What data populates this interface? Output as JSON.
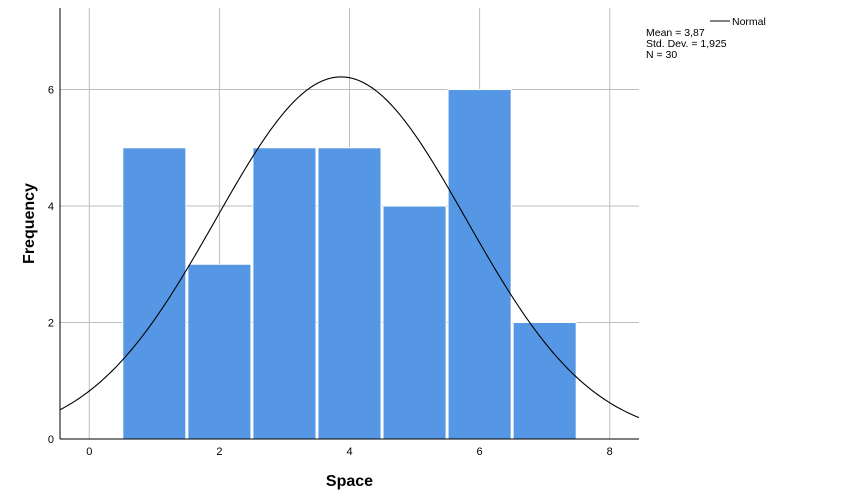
{
  "chart_data": {
    "type": "bar",
    "subtype": "histogram-with-normal-curve",
    "xlabel": "Space",
    "ylabel": "Frequency",
    "xlim": [
      -0.45,
      8.45
    ],
    "ylim": [
      0,
      7.4
    ],
    "x_ticks": [
      0,
      2,
      4,
      6,
      8
    ],
    "y_ticks": [
      0,
      2,
      4,
      6
    ],
    "grid": true,
    "bins": [
      {
        "x0": 0.5,
        "x1": 1.5,
        "value": 5
      },
      {
        "x0": 1.5,
        "x1": 2.5,
        "value": 3
      },
      {
        "x0": 2.5,
        "x1": 3.5,
        "value": 5
      },
      {
        "x0": 3.5,
        "x1": 4.5,
        "value": 5
      },
      {
        "x0": 4.5,
        "x1": 5.5,
        "value": 4
      },
      {
        "x0": 5.5,
        "x1": 6.5,
        "value": 6
      },
      {
        "x0": 6.5,
        "x1": 7.5,
        "value": 2
      }
    ],
    "normal_curve": {
      "mean": 3.87,
      "sd": 1.925,
      "n": 30,
      "bin_width": 1
    },
    "legend": {
      "position": "top-right",
      "series_label": "Normal",
      "stats": [
        "Mean = 3,87",
        "Std. Dev. = 1,925",
        "N = 30"
      ]
    },
    "colors": {
      "bar": "#5597e4",
      "bar_edge": "#ffffff",
      "grid": "#bdbdbd",
      "axis": "#000000",
      "curve": "#000000"
    }
  }
}
